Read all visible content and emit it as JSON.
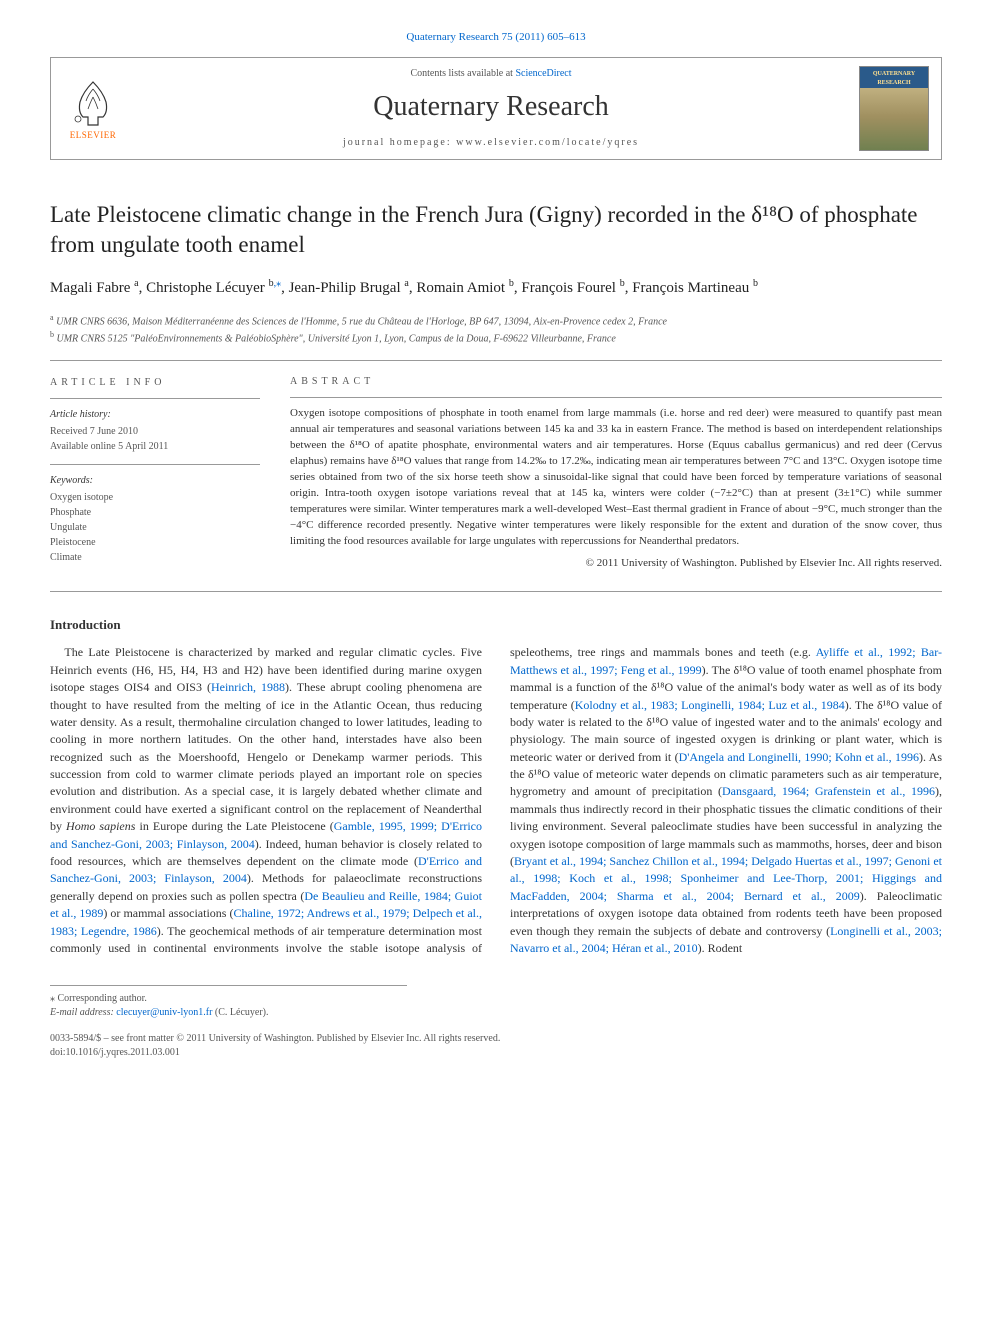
{
  "colors": {
    "link": "#0066cc",
    "text": "#333333",
    "muted": "#555555",
    "rule": "#999999",
    "elsevier_orange": "#ff6600",
    "background": "#ffffff"
  },
  "fonts": {
    "body_family": "Georgia, 'Times New Roman', serif",
    "title_size_pt": 23,
    "journal_name_size_pt": 28,
    "authors_size_pt": 15,
    "body_size_pt": 12,
    "abstract_size_pt": 11,
    "small_size_pt": 10
  },
  "journal_ref": "Quaternary Research 75 (2011) 605–613",
  "header": {
    "contents_prefix": "Contents lists available at ",
    "contents_link": "ScienceDirect",
    "journal_name": "Quaternary Research",
    "homepage_prefix": "journal homepage: ",
    "homepage_url": "www.elsevier.com/locate/yqres",
    "publisher_logo_label": "ELSEVIER",
    "cover_thumb_label": "QUATERNARY RESEARCH"
  },
  "title": "Late Pleistocene climatic change in the French Jura (Gigny) recorded in the δ¹⁸O of phosphate from ungulate tooth enamel",
  "authors": [
    {
      "name": "Magali Fabre",
      "aff": "a"
    },
    {
      "name": "Christophe Lécuyer",
      "aff": "b",
      "corresponding": true
    },
    {
      "name": "Jean-Philip Brugal",
      "aff": "a"
    },
    {
      "name": "Romain Amiot",
      "aff": "b"
    },
    {
      "name": "François Fourel",
      "aff": "b"
    },
    {
      "name": "François Martineau",
      "aff": "b"
    }
  ],
  "affiliations": [
    {
      "key": "a",
      "text": "UMR CNRS 6636, Maison Méditerranéenne des Sciences de l'Homme, 5 rue du Château de l'Horloge, BP 647, 13094, Aix-en-Provence cedex 2, France"
    },
    {
      "key": "b",
      "text": "UMR CNRS 5125 \"PaléoEnvironnements & PaléobioSphère\", Université Lyon 1, Lyon, Campus de la Doua, F-69622 Villeurbanne, France"
    }
  ],
  "article_info": {
    "heading": "ARTICLE INFO",
    "history_heading": "Article history:",
    "received": "Received 7 June 2010",
    "online": "Available online 5 April 2011",
    "keywords_heading": "Keywords:",
    "keywords": [
      "Oxygen isotope",
      "Phosphate",
      "Ungulate",
      "Pleistocene",
      "Climate"
    ]
  },
  "abstract": {
    "heading": "ABSTRACT",
    "text": "Oxygen isotope compositions of phosphate in tooth enamel from large mammals (i.e. horse and red deer) were measured to quantify past mean annual air temperatures and seasonal variations between 145 ka and 33 ka in eastern France. The method is based on interdependent relationships between the δ¹⁸O of apatite phosphate, environmental waters and air temperatures. Horse (Equus caballus germanicus) and red deer (Cervus elaphus) remains have δ¹⁸O values that range from 14.2‰ to 17.2‰, indicating mean air temperatures between 7°C and 13°C. Oxygen isotope time series obtained from two of the six horse teeth show a sinusoidal-like signal that could have been forced by temperature variations of seasonal origin. Intra-tooth oxygen isotope variations reveal that at 145 ka, winters were colder (−7±2°C) than at present (3±1°C) while summer temperatures were similar. Winter temperatures mark a well-developed West–East thermal gradient in France of about −9°C, much stronger than the −4°C difference recorded presently. Negative winter temperatures were likely responsible for the extent and duration of the snow cover, thus limiting the food resources available for large ungulates with repercussions for Neanderthal predators.",
    "copyright": "© 2011 University of Washington. Published by Elsevier Inc. All rights reserved."
  },
  "body": {
    "section_heading": "Introduction",
    "paragraphs": [
      {
        "runs": [
          {
            "t": "The Late Pleistocene is characterized by marked and regular climatic cycles. Five Heinrich events (H6, H5, H4, H3 and H2) have been identified during marine oxygen isotope stages OIS4 and OIS3 ("
          },
          {
            "t": "Heinrich, 1988",
            "link": true
          },
          {
            "t": "). These abrupt cooling phenomena are thought to have resulted from the melting of ice in the Atlantic Ocean, thus reducing water density. As a result, thermohaline circulation changed to lower latitudes, leading to cooling in more northern latitudes. On the other hand, interstades have also been recognized such as the Moershoofd, Hengelo or Denekamp warmer periods. This succession from cold to warmer climate periods played an important role on species evolution and distribution. As a special case, it is largely debated whether climate and environment could have exerted a significant control on the replacement of Neanderthal by "
          },
          {
            "t": "Homo sapiens",
            "italic": true
          },
          {
            "t": " in Europe during the Late Pleistocene ("
          },
          {
            "t": "Gamble, 1995, 1999; D'Errico and Sanchez-Goni, 2003; Finlayson, 2004",
            "link": true
          },
          {
            "t": "). Indeed, human behavior is closely related to food resources, which are themselves dependent on the climate mode ("
          },
          {
            "t": "D'Errico and Sanchez-Goni, 2003; Finlayson, 2004",
            "link": true
          },
          {
            "t": "). Methods for palaeoclimate reconstructions generally depend on proxies such as pollen spectra ("
          },
          {
            "t": "De Beaulieu and Reille, 1984; Guiot et al., 1989",
            "link": true
          },
          {
            "t": ") or mammal associations ("
          },
          {
            "t": "Chaline, 1972; Andrews et al., 1979; Delpech et al., 1983; Legendre, 1986",
            "link": true
          },
          {
            "t": "). The geochemical methods of air temperature determination most commonly used in continental environments involve the stable isotope analysis of speleothems, tree rings and mammals bones and teeth (e.g. "
          },
          {
            "t": "Ayliffe et al., 1992; Bar-Matthews et al., 1997; Feng et al., 1999",
            "link": true
          },
          {
            "t": "). The δ¹⁸O value of tooth enamel phosphate from mammal is a function of the δ¹⁸O value of the animal's body water as well as of its body temperature ("
          },
          {
            "t": "Kolodny et al., 1983; Longinelli, 1984; Luz et al., 1984",
            "link": true
          },
          {
            "t": "). The δ¹⁸O value of body water is related to the δ¹⁸O value of ingested water and to the animals' ecology and physiology. The main source of ingested oxygen is drinking or plant water, which is meteoric water or derived from it ("
          },
          {
            "t": "D'Angela and Longinelli, 1990; Kohn et al., 1996",
            "link": true
          },
          {
            "t": "). As the δ¹⁸O value of meteoric water depends on climatic parameters such as air temperature, hygrometry and amount of precipitation ("
          },
          {
            "t": "Dansgaard, 1964; Grafenstein et al., 1996",
            "link": true
          },
          {
            "t": "), mammals thus indirectly record in their phosphatic tissues the climatic conditions of their living environment. Several paleoclimate studies have been successful in analyzing the oxygen isotope composition of large mammals such as mammoths, horses, deer and bison ("
          },
          {
            "t": "Bryant et al., 1994; Sanchez Chillon et al., 1994; Delgado Huertas et al., 1997; Genoni et al., 1998; Koch et al., 1998; Sponheimer and Lee-Thorp, 2001; Higgings and MacFadden, 2004; Sharma et al., 2004; Bernard et al., 2009",
            "link": true
          },
          {
            "t": "). Paleoclimatic interpretations of oxygen isotope data obtained from rodents teeth have been proposed even though they remain the subjects of debate and controversy ("
          },
          {
            "t": "Longinelli et al., 2003; Navarro et al., 2004; Héran et al., 2010",
            "link": true
          },
          {
            "t": "). Rodent"
          }
        ]
      }
    ]
  },
  "footnote": {
    "corr_label": "⁎ Corresponding author.",
    "email_label": "E-mail address:",
    "email": "clecuyer@univ-lyon1.fr",
    "email_person": "(C. Lécuyer)."
  },
  "bottom": {
    "front_matter": "0033-5894/$ – see front matter © 2011 University of Washington. Published by Elsevier Inc. All rights reserved.",
    "doi": "doi:10.1016/j.yqres.2011.03.001"
  }
}
